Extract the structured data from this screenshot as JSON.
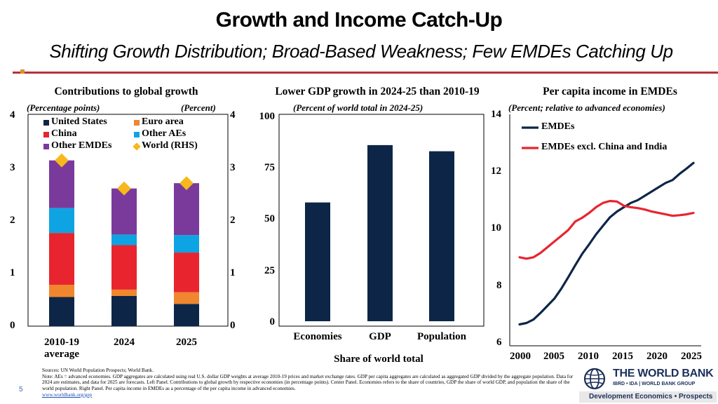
{
  "header": {
    "title": "Growth and Income Catch-Up",
    "subtitle": "Shifting Growth Distribution; Broad-Based Weakness; Few EMDEs Catching Up"
  },
  "colors": {
    "accent_rule": "#b5323a",
    "navy": "#0d2647",
    "orange": "#f0862d",
    "red": "#e8252f",
    "cyan": "#0ea4e3",
    "purple": "#7a3a9c",
    "gold": "#f7b81e"
  },
  "chart_data": [
    {
      "type": "bar",
      "stacked": true,
      "title": "Contributions to global growth",
      "subtitle_left": "(Percentage points)",
      "subtitle_right": "(Percent)",
      "categories": [
        "2010-19 average",
        "2024",
        "2025"
      ],
      "category_labels": [
        [
          "2010-19",
          "average"
        ],
        [
          "2024"
        ],
        [
          "2025"
        ]
      ],
      "series": [
        {
          "name": "United States",
          "color": "#0d2647",
          "values": [
            0.55,
            0.57,
            0.42
          ]
        },
        {
          "name": "Euro area",
          "color": "#f0862d",
          "values": [
            0.23,
            0.12,
            0.22
          ]
        },
        {
          "name": "China",
          "color": "#e8252f",
          "values": [
            0.98,
            0.84,
            0.75
          ]
        },
        {
          "name": "Other AEs",
          "color": "#0ea4e3",
          "values": [
            0.47,
            0.2,
            0.33
          ]
        },
        {
          "name": "Other EMDEs",
          "color": "#7a3a9c",
          "values": [
            0.9,
            0.87,
            0.98
          ]
        }
      ],
      "world_rhs": {
        "name": "World (RHS)",
        "color": "#f7b81e",
        "values": [
          3.13,
          2.6,
          2.7
        ]
      },
      "y_ticks": [
        "0",
        "1",
        "2",
        "3",
        "4"
      ],
      "ylim": [
        0,
        4
      ],
      "ylim_rhs": [
        0,
        4
      ],
      "legend": [
        "United States",
        "Euro area",
        "China",
        "Other AEs",
        "Other EMDEs",
        "World (RHS)"
      ]
    },
    {
      "type": "bar",
      "title": "Lower GDP growth in 2024-25 than 2010-19",
      "subtitle": "(Percent of world total in 2024-25)",
      "categories": [
        "Economies",
        "GDP",
        "Population"
      ],
      "values": [
        58,
        86,
        83
      ],
      "xlabel": "Share of world total",
      "y_ticks": [
        "0",
        "25",
        "50",
        "75",
        "100"
      ],
      "ylim": [
        0,
        100
      ]
    },
    {
      "type": "line",
      "title": "Per capita income in EMDEs",
      "subtitle": "(Percent; relative to advanced economies)",
      "x": [
        2000,
        2001,
        2002,
        2003,
        2004,
        2005,
        2006,
        2007,
        2008,
        2009,
        2010,
        2011,
        2012,
        2013,
        2014,
        2015,
        2016,
        2017,
        2018,
        2019,
        2020,
        2021,
        2022,
        2023,
        2024,
        2025
      ],
      "series": [
        {
          "name": "EMDEs",
          "color": "#0d2647",
          "values": [
            6.65,
            6.7,
            6.82,
            7.05,
            7.3,
            7.55,
            7.9,
            8.3,
            8.72,
            9.12,
            9.45,
            9.8,
            10.1,
            10.4,
            10.6,
            10.75,
            10.9,
            11.0,
            11.15,
            11.3,
            11.45,
            11.6,
            11.7,
            11.92,
            12.1,
            12.3
          ]
        },
        {
          "name": "EMDEs excl. China and India",
          "color": "#e8252f",
          "values": [
            9.0,
            8.95,
            9.0,
            9.15,
            9.35,
            9.55,
            9.75,
            9.95,
            10.25,
            10.38,
            10.55,
            10.75,
            10.9,
            10.97,
            10.95,
            10.8,
            10.75,
            10.72,
            10.67,
            10.6,
            10.55,
            10.5,
            10.45,
            10.47,
            10.5,
            10.55
          ]
        }
      ],
      "x_ticks": [
        "2000",
        "2005",
        "2010",
        "2015",
        "2020",
        "2025"
      ],
      "y_ticks": [
        "6",
        "8",
        "10",
        "12",
        "14"
      ],
      "ylim": [
        6,
        14
      ],
      "xlim": [
        2000,
        2025
      ]
    }
  ],
  "footer": {
    "sources": "Sources: UN World Population Prospects; World Bank.",
    "note": "Note: AEs = advanced economies. GDP aggregates are calculated using real U.S. dollar GDP weights at average 2010-19 prices and market exchange rates. GDP per capita aggregates are calculated as aggregated GDP divided by the aggregate population. Data for 2024 are estimates, and data for 2025 are forecasts. Left Panel. Contributions to global growth by respective economies (in percentage points). Center Panel. Economies refers to the share of countries, GDP the share of world GDP, and population the share of the world population. Right Panel. Per capita income in EMDEs as a percentage of the per capita income in advanced economies.",
    "link": "www.worldbank.org/gep",
    "page_number": "5"
  },
  "logo": {
    "name": "THE WORLD BANK",
    "sub": "IBRD • IDA | WORLD BANK GROUP",
    "department": "Development Economics • Prospects"
  }
}
